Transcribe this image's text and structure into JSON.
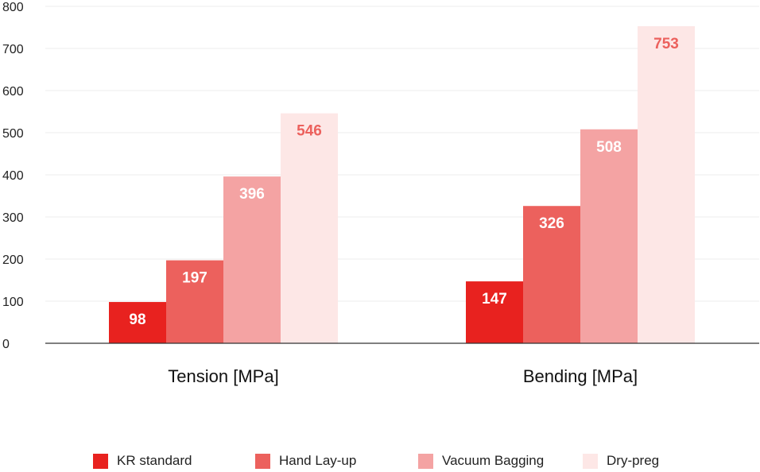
{
  "chart_data": {
    "type": "bar",
    "categories": [
      "Tension [MPa]",
      "Bending [MPa]"
    ],
    "series": [
      {
        "name": "KR standard",
        "values": [
          98,
          147
        ],
        "color": "#e8221f",
        "label_color": "#ffffff"
      },
      {
        "name": "Hand Lay-up",
        "values": [
          197,
          326
        ],
        "color": "#ec615d",
        "label_color": "#ffffff"
      },
      {
        "name": "Vacuum Bagging",
        "values": [
          396,
          508
        ],
        "color": "#f4a3a3",
        "label_color": "#ffffff"
      },
      {
        "name": "Dry-preg",
        "values": [
          546,
          753
        ],
        "color": "#fde7e6",
        "label_color": "#ec615d"
      }
    ],
    "ylim": [
      0,
      800
    ],
    "yticks": [
      0,
      100,
      200,
      300,
      400,
      500,
      600,
      700,
      800
    ],
    "grid": true,
    "legend_position": "bottom"
  }
}
